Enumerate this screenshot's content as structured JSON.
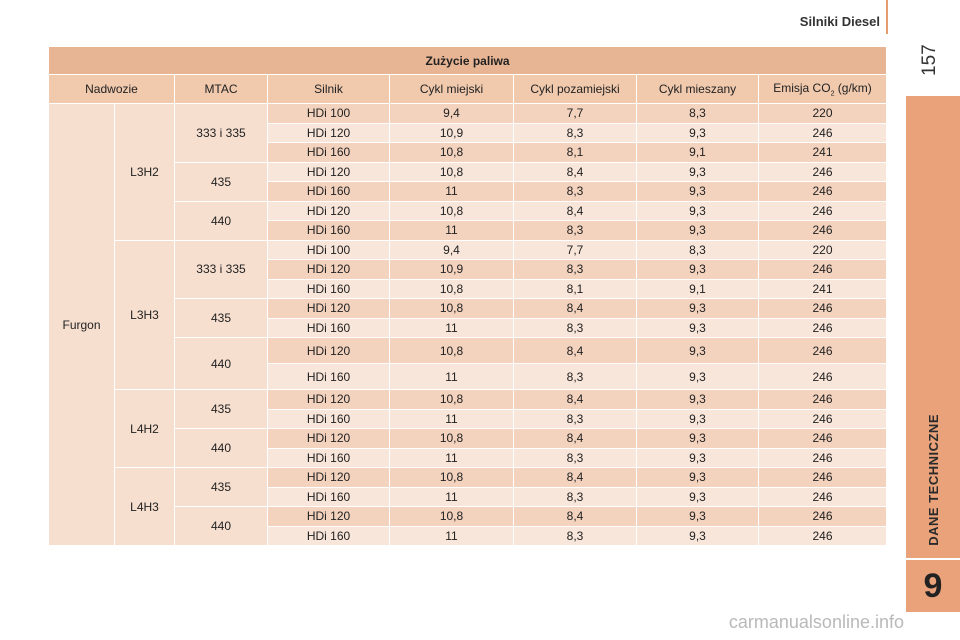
{
  "header": {
    "title": "Silniki Diesel",
    "page_number": "157"
  },
  "side_tab": {
    "label": "DANE TECHNICZNE",
    "chapter": "9"
  },
  "watermark": "carmanualsonline.info",
  "table": {
    "title": "Zużycie paliwa",
    "headers": {
      "body": "Nadwozie",
      "mtac": "MTAC",
      "engine": "Silnik",
      "urban": "Cykl miejski",
      "extra_urban": "Cykl pozamiejski",
      "combined": "Cykl mieszany",
      "emission_prefix": "Emisja CO",
      "emission_sub": "2",
      "emission_suffix": " (g/km)"
    },
    "body_type": "Furgon",
    "groups": [
      {
        "version": "L3H2",
        "mtac": [
          {
            "label": "333 i 335",
            "rows": [
              [
                "HDi 100",
                "9,4",
                "7,7",
                "8,3",
                "220"
              ],
              [
                "HDi 120",
                "10,9",
                "8,3",
                "9,3",
                "246"
              ],
              [
                "HDi 160",
                "10,8",
                "8,1",
                "9,1",
                "241"
              ]
            ]
          },
          {
            "label": "435",
            "rows": [
              [
                "HDi 120",
                "10,8",
                "8,4",
                "9,3",
                "246"
              ],
              [
                "HDi 160",
                "11",
                "8,3",
                "9,3",
                "246"
              ]
            ]
          },
          {
            "label": "440",
            "rows": [
              [
                "HDi 120",
                "10,8",
                "8,4",
                "9,3",
                "246"
              ],
              [
                "HDi 160",
                "11",
                "8,3",
                "9,3",
                "246"
              ]
            ]
          }
        ]
      },
      {
        "version": "L3H3",
        "mtac": [
          {
            "label": "333 i 335",
            "rows": [
              [
                "HDi 100",
                "9,4",
                "7,7",
                "8,3",
                "220"
              ],
              [
                "HDi 120",
                "10,9",
                "8,3",
                "9,3",
                "246"
              ],
              [
                "HDi 160",
                "10,8",
                "8,1",
                "9,1",
                "241"
              ]
            ]
          },
          {
            "label": "435",
            "rows": [
              [
                "HDi 120",
                "10,8",
                "8,4",
                "9,3",
                "246"
              ],
              [
                "HDi 160",
                "11",
                "8,3",
                "9,3",
                "246"
              ]
            ]
          },
          {
            "label": "440",
            "rows": [
              [
                "HDi 120",
                "10,8",
                "8,4",
                "9,3",
                "246"
              ],
              [
                "HDi 160",
                "11",
                "8,3",
                "9,3",
                "246"
              ]
            ]
          }
        ]
      },
      {
        "version": "L4H2",
        "mtac": [
          {
            "label": "435",
            "rows": [
              [
                "HDi 120",
                "10,8",
                "8,4",
                "9,3",
                "246"
              ],
              [
                "HDi 160",
                "11",
                "8,3",
                "9,3",
                "246"
              ]
            ]
          },
          {
            "label": "440",
            "rows": [
              [
                "HDi 120",
                "10,8",
                "8,4",
                "9,3",
                "246"
              ],
              [
                "HDi 160",
                "11",
                "8,3",
                "9,3",
                "246"
              ]
            ]
          }
        ]
      },
      {
        "version": "L4H3",
        "mtac": [
          {
            "label": "435",
            "rows": [
              [
                "HDi 120",
                "10,8",
                "8,4",
                "9,3",
                "246"
              ],
              [
                "HDi 160",
                "11",
                "8,3",
                "9,3",
                "246"
              ]
            ]
          },
          {
            "label": "440",
            "rows": [
              [
                "HDi 120",
                "10,8",
                "8,4",
                "9,3",
                "246"
              ],
              [
                "HDi 160",
                "11",
                "8,3",
                "9,3",
                "246"
              ]
            ]
          }
        ]
      }
    ]
  }
}
